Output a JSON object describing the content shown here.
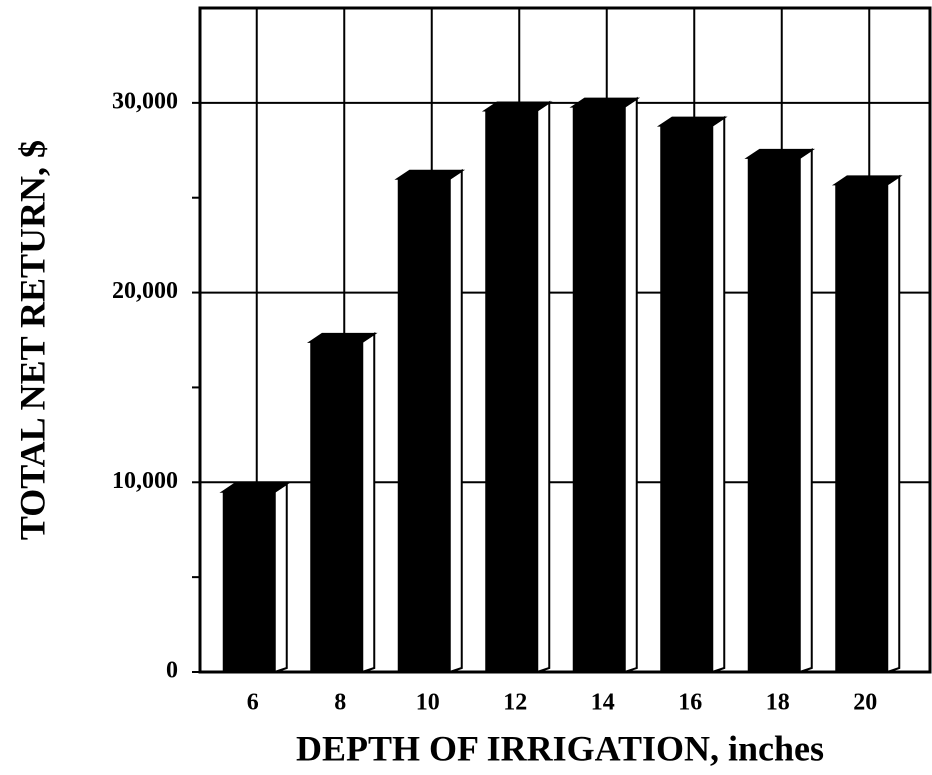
{
  "chart_data": {
    "type": "bar3d",
    "xlabel": "DEPTH OF IRRIGATION, inches",
    "ylabel": "TOTAL NET RETURN, $",
    "categories": [
      "6",
      "8",
      "10",
      "12",
      "14",
      "16",
      "18",
      "20"
    ],
    "values": [
      9500,
      17400,
      26000,
      29600,
      29800,
      28800,
      27100,
      25700
    ],
    "color": "#000000",
    "ylim": [
      0,
      35000
    ],
    "yticks": [
      0,
      {
        "value": 10000,
        "label": "10,000"
      },
      {
        "value": 20000,
        "label": "20,000"
      },
      {
        "value": 30000,
        "label": "30,000"
      }
    ],
    "minor_yticks": [
      5000,
      15000,
      25000
    ],
    "grid": true
  }
}
